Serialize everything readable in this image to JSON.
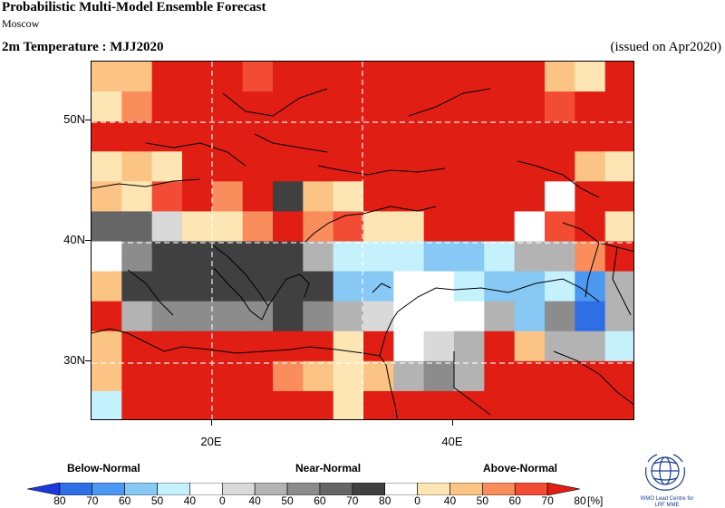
{
  "header": {
    "title": "Probabilistic Multi-Model Ensemble Forecast",
    "location": "Moscow",
    "variable": "2m Temperature : MJJ2020",
    "issued": "(issued on Apr2020)"
  },
  "axes": {
    "lat_labels": [
      "50N",
      "40N",
      "30N"
    ],
    "lon_labels": [
      "20E",
      "40E"
    ],
    "lon_range": [
      10,
      55
    ],
    "lat_range": [
      25,
      55
    ]
  },
  "legend": {
    "below_label": "Below-Normal",
    "near_label": "Near-Normal",
    "above_label": "Above-Normal",
    "ticks": [
      "80",
      "70",
      "60",
      "50",
      "40",
      "0",
      "40",
      "50",
      "60",
      "70",
      "80",
      "0",
      "40",
      "50",
      "60",
      "70",
      "80"
    ],
    "unit": "[%]",
    "colors": {
      "below": [
        "#1c38d8",
        "#2f6fe6",
        "#4d98f0",
        "#87c8f4",
        "#c4f1fb"
      ],
      "white": "#ffffff",
      "near": [
        "#d9d9d9",
        "#b3b3b3",
        "#8c8c8c",
        "#666666",
        "#404040"
      ],
      "above": [
        "#fde6b4",
        "#fbc484",
        "#f98d5c",
        "#f24c34",
        "#e01e14"
      ]
    }
  },
  "logo": {
    "line1": "WMO Lead Centre for",
    "line2": "LRF MME"
  },
  "map_data": {
    "cols": 18,
    "rows": 12,
    "codes": "A=above80,a=above70,b=above60,c=above50,d=above40,W=white,n=near40,m=near50,g=near60,h=near70,k=near80,z=below40,y=below50,x=below60,v=below70",
    "grid": [
      "ccAAAaAAAAAAAAAcdA",
      "dbAAAAAAAAAAAAAaAA",
      "AAAAAAAAAAAAAAAAAA",
      "dcdAAAAAAAAAAAAAcd",
      "cdaAbAkcdAAAAAAWAA",
      "hhnddbAbaddAAAWaAd",
      "WgkkkkkmzzzyyzmmbA",
      "ckkkkkkkyyWWzyyzxm",
      "AmggggkgmnWWWmygvm",
      "cAAAAAAAdAWnmAcmmz",
      "cAAAAAbcdcmgmAAAAA",
      "zAAAAAAAdAAAAAAAAA"
    ]
  }
}
